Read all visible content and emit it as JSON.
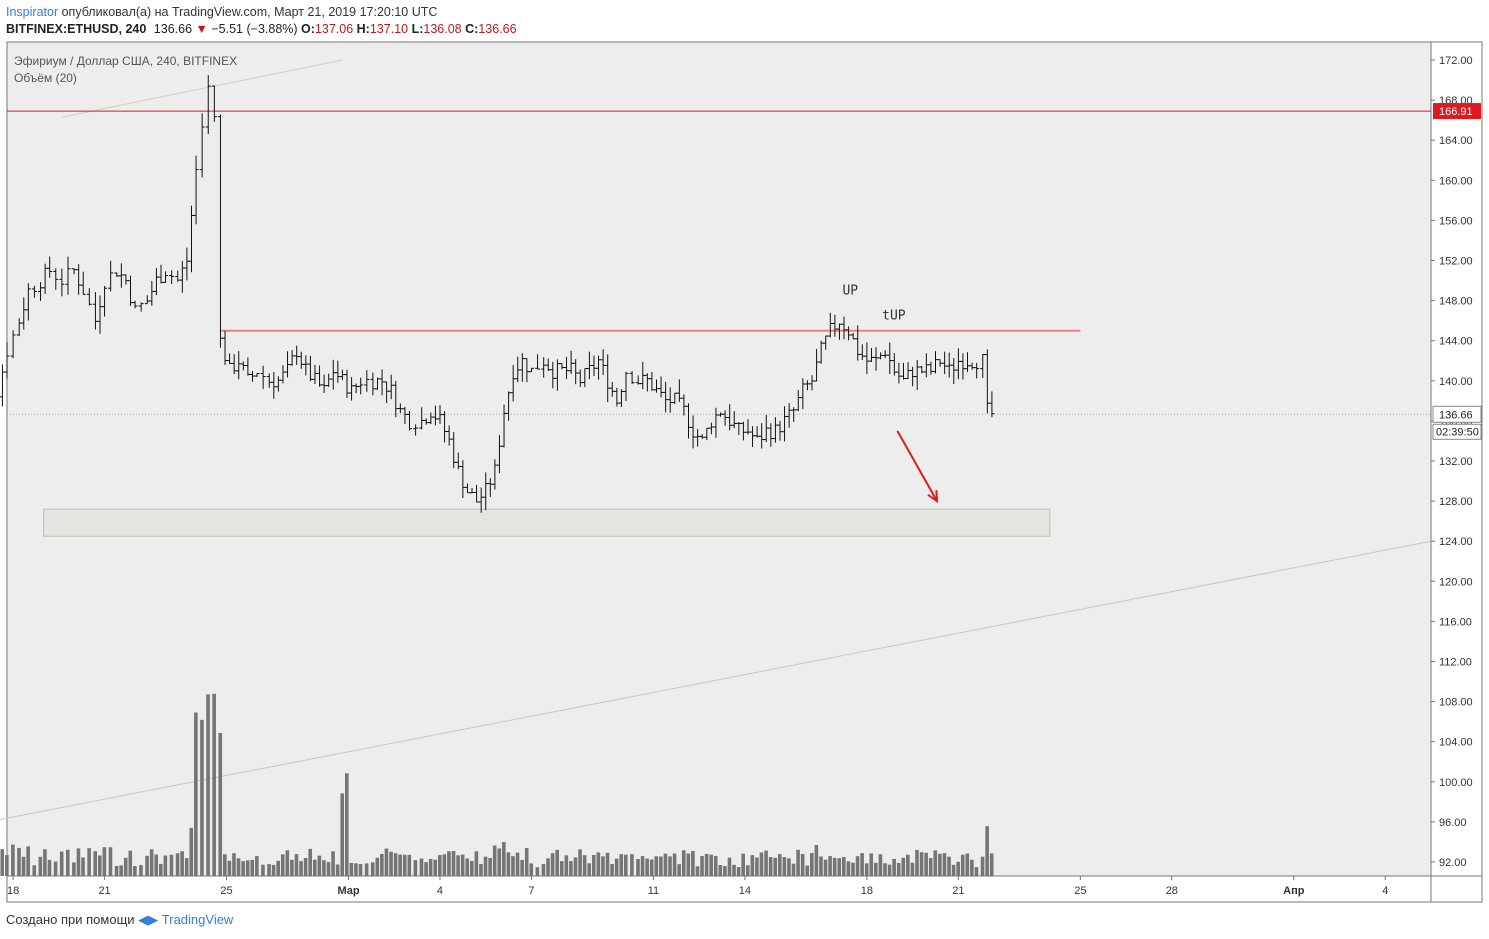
{
  "header": {
    "author": "Inspirator",
    "published_text": "опубликовал(а) на TradingView.com, Март 21, 2019 17:20:10 UTC",
    "symbol": "BITFINEX:ETHUSD, 240",
    "last_price": "136.66",
    "change": "−5.51 (−3.88%)",
    "o_label": "O:",
    "o_value": "137.06",
    "h_label": "H:",
    "h_value": "137.10",
    "l_label": "L:",
    "l_value": "136.08",
    "c_label": "C:",
    "c_value": "136.66"
  },
  "pane": {
    "series_title": "Эфириум / Доллар США, 240, BITFINEX",
    "volume_title": "Объём (20)"
  },
  "footer": {
    "created_with": "Создано при помощи",
    "brand": "TradingView"
  },
  "chart_data": {
    "type": "ohlc",
    "price_axis": {
      "ticks": [
        92,
        96,
        100,
        104,
        108,
        112,
        116,
        120,
        124,
        128,
        132,
        136,
        140,
        144,
        148,
        152,
        156,
        160,
        164,
        168,
        172
      ],
      "range": [
        90.6,
        173.8
      ]
    },
    "time_axis": {
      "labels": [
        {
          "label": "18",
          "day": 18
        },
        {
          "label": "21",
          "day": 21
        },
        {
          "label": "25",
          "day": 25
        },
        {
          "label": "Мар",
          "day": 29
        },
        {
          "label": "4",
          "day": 32
        },
        {
          "label": "7",
          "day": 35
        },
        {
          "label": "11",
          "day": 39
        },
        {
          "label": "14",
          "day": 42
        },
        {
          "label": "18",
          "day": 46
        },
        {
          "label": "21",
          "day": 49
        },
        {
          "label": "25",
          "day": 53
        },
        {
          "label": "28",
          "day": 56
        },
        {
          "label": "Апр",
          "day": 60
        },
        {
          "label": "4",
          "day": 63
        }
      ],
      "note": "day = days since Feb 0 (Feb 18 = 18, Mar 1 = 29)"
    },
    "last_price_label": "136.66",
    "countdown_label": "02:39:50",
    "resistance": {
      "price": 166.91,
      "label": "166.91",
      "color": "#e0191f"
    },
    "range_top": {
      "price": 145.0,
      "from_day": 24.8,
      "to_day": 53.0,
      "color": "#f08080"
    },
    "support_zone": {
      "price_low": 124.5,
      "price_high": 127.2,
      "from_day": 19.0,
      "to_day": 52.0
    },
    "trendline_upper": {
      "from": [
        19.6,
        166.3
      ],
      "to": [
        28.8,
        172.0
      ]
    },
    "trendline_lower": {
      "from": [
        17.0,
        95.9
      ],
      "to": [
        67.0,
        124.0
      ]
    },
    "annotations": [
      {
        "text": "UP",
        "day": 45.2,
        "price": 148.6
      },
      {
        "text": "tUP",
        "day": 46.5,
        "price": 146.1
      }
    ],
    "arrow": {
      "from": [
        47.0,
        135.0
      ],
      "to": [
        48.3,
        128.0
      ],
      "color": "#e0191f"
    },
    "price_path": [
      [
        16.3,
        125
      ],
      [
        16.8,
        130
      ],
      [
        17.2,
        134
      ],
      [
        17.5,
        139
      ],
      [
        17.8,
        143
      ],
      [
        18.2,
        146
      ],
      [
        18.5,
        149
      ],
      [
        18.9,
        150
      ],
      [
        19.2,
        151
      ],
      [
        19.6,
        150
      ],
      [
        20.0,
        151
      ],
      [
        20.3,
        149
      ],
      [
        20.7,
        146
      ],
      [
        21.0,
        150
      ],
      [
        21.4,
        151
      ],
      [
        21.7,
        150
      ],
      [
        22.0,
        147
      ],
      [
        22.4,
        148
      ],
      [
        22.7,
        150
      ],
      [
        23.0,
        151
      ],
      [
        23.4,
        150
      ],
      [
        23.7,
        152
      ],
      [
        24.0,
        161
      ],
      [
        24.2,
        166
      ],
      [
        24.4,
        169
      ],
      [
        24.6,
        166
      ],
      [
        24.8,
        144
      ],
      [
        25.1,
        141
      ],
      [
        25.4,
        142
      ],
      [
        25.7,
        140
      ],
      [
        26.0,
        141
      ],
      [
        26.4,
        140
      ],
      [
        26.7,
        140
      ],
      [
        27.0,
        141
      ],
      [
        27.3,
        143
      ],
      [
        27.6,
        141
      ],
      [
        27.9,
        140
      ],
      [
        28.2,
        139
      ],
      [
        28.5,
        141
      ],
      [
        28.8,
        140
      ],
      [
        29.1,
        139
      ],
      [
        29.4,
        140
      ],
      [
        29.8,
        140
      ],
      [
        30.1,
        140
      ],
      [
        30.4,
        139
      ],
      [
        30.7,
        137
      ],
      [
        31.0,
        136
      ],
      [
        31.4,
        136
      ],
      [
        31.7,
        137
      ],
      [
        32.0,
        136
      ],
      [
        32.3,
        134
      ],
      [
        32.6,
        131
      ],
      [
        32.9,
        129
      ],
      [
        33.2,
        128
      ],
      [
        33.5,
        129
      ],
      [
        33.8,
        131
      ],
      [
        34.1,
        137
      ],
      [
        34.4,
        141
      ],
      [
        34.7,
        142
      ],
      [
        35.0,
        141
      ],
      [
        35.4,
        142
      ],
      [
        35.7,
        141
      ],
      [
        36.0,
        141
      ],
      [
        36.3,
        141
      ],
      [
        36.6,
        140
      ],
      [
        36.9,
        141
      ],
      [
        37.2,
        142
      ],
      [
        37.5,
        140
      ],
      [
        37.8,
        138
      ],
      [
        38.1,
        141
      ],
      [
        38.5,
        140
      ],
      [
        38.8,
        140
      ],
      [
        39.1,
        139
      ],
      [
        39.4,
        138
      ],
      [
        39.7,
        138
      ],
      [
        40.0,
        137
      ],
      [
        40.3,
        135
      ],
      [
        40.6,
        134
      ],
      [
        40.9,
        136
      ],
      [
        41.2,
        137
      ],
      [
        41.5,
        136
      ],
      [
        41.8,
        135
      ],
      [
        42.1,
        135
      ],
      [
        42.4,
        134
      ],
      [
        42.7,
        135
      ],
      [
        43.0,
        135
      ],
      [
        43.3,
        136
      ],
      [
        43.6,
        137
      ],
      [
        43.9,
        139
      ],
      [
        44.2,
        140
      ],
      [
        44.5,
        143
      ],
      [
        44.8,
        145
      ],
      [
        45.1,
        146
      ],
      [
        45.4,
        145
      ],
      [
        45.7,
        143
      ],
      [
        46.0,
        142
      ],
      [
        46.3,
        142
      ],
      [
        46.6,
        143
      ],
      [
        46.9,
        141
      ],
      [
        47.2,
        140
      ],
      [
        47.5,
        141
      ],
      [
        47.8,
        141
      ],
      [
        48.1,
        141
      ],
      [
        48.4,
        142
      ],
      [
        48.7,
        141
      ],
      [
        49.0,
        142
      ],
      [
        49.3,
        142
      ],
      [
        49.6,
        142
      ],
      [
        49.8,
        142
      ],
      [
        49.95,
        137
      ],
      [
        50.1,
        136.66
      ]
    ],
    "volume_note": "Histogram volume bars along the bottom of the pane, peaks near Feb 24 and Feb 28"
  }
}
